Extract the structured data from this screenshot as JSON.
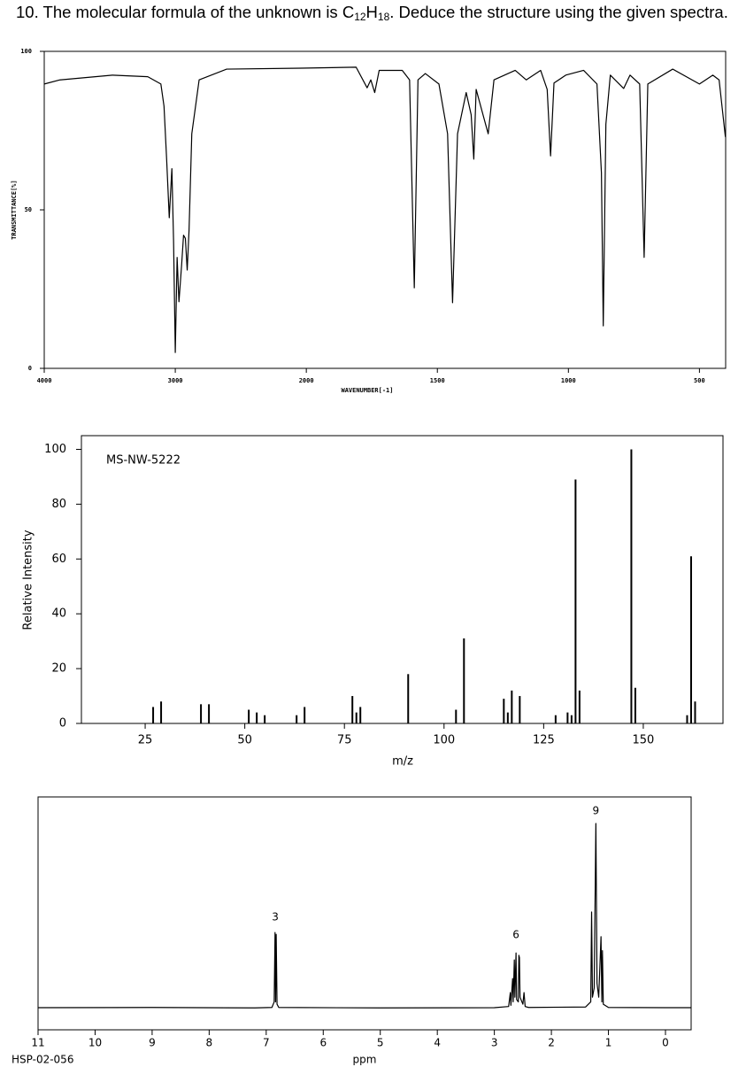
{
  "question": [
    "10.  The molecular formula of the unknown is C",
    "12",
    "H",
    "18",
    ".  Deduce the structure using the given spectra."
  ],
  "chart_data": [
    {
      "type": "line",
      "xlabel": "WAVENUMBER[-1]",
      "ylabel": "TRANSMITTANCE[%]",
      "color": "#000000",
      "xscale": "piecewise",
      "xlim": [
        4000,
        400
      ],
      "xticks": [
        4000,
        3000,
        2000,
        1500,
        1000,
        500
      ],
      "ylim": [
        0,
        100
      ],
      "yticks": [
        0,
        50,
        100
      ],
      "x": [
        4000,
        3880,
        3480,
        3210,
        3110,
        3086,
        3066,
        3046,
        3026,
        3013,
        3000,
        2986,
        2972,
        2951,
        2937,
        2923,
        2909,
        2895,
        2874,
        2818,
        2608,
        2042,
        1810,
        1768,
        1754,
        1739,
        1722,
        1634,
        1606,
        1588,
        1574,
        1546,
        1494,
        1461,
        1442,
        1423,
        1390,
        1371,
        1361,
        1352,
        1316,
        1306,
        1284,
        1203,
        1161,
        1106,
        1081,
        1068,
        1055,
        1010,
        942,
        891,
        874,
        867,
        857,
        840,
        789,
        765,
        728,
        711,
        697,
        602,
        500,
        449,
        425,
        401
      ],
      "values": [
        89.7,
        91,
        92.5,
        92,
        89.7,
        82.7,
        66,
        47.5,
        63,
        40,
        5,
        35,
        21,
        33,
        42,
        41,
        31,
        43.6,
        74,
        91,
        94.4,
        94.7,
        95,
        88.5,
        91,
        87,
        94,
        94,
        91,
        25.4,
        91,
        93,
        89.7,
        74,
        20.7,
        74,
        87,
        80,
        66,
        88,
        77,
        74,
        91,
        94,
        91,
        94,
        88,
        67,
        90,
        92.5,
        94,
        89.7,
        61.7,
        13.4,
        77,
        92.5,
        88.3,
        92.5,
        89.7,
        35,
        89.7,
        94.4,
        89.7,
        92.5,
        91,
        73
      ]
    },
    {
      "type": "bar",
      "title": "MS-NW-5222",
      "xlabel": "m/z",
      "ylabel": "Relative Intensity",
      "color": "#000000",
      "xlim": [
        9,
        170
      ],
      "xticks": [
        25,
        50,
        75,
        100,
        125,
        150
      ],
      "ylim": [
        0,
        105
      ],
      "yticks": [
        0,
        20,
        40,
        60,
        80,
        100
      ],
      "x": [
        27,
        29,
        39,
        41,
        51,
        53,
        55,
        63,
        65,
        77,
        78,
        79,
        91,
        103,
        105,
        115,
        116,
        117,
        119,
        128,
        131,
        132,
        133,
        134,
        147,
        148,
        161,
        162,
        163
      ],
      "values": [
        6,
        8,
        7,
        7,
        5,
        4,
        3,
        3,
        6,
        10,
        4,
        6,
        18,
        5,
        31,
        9,
        4,
        12,
        10,
        3,
        4,
        3,
        89,
        12,
        100,
        13,
        3,
        61,
        8
      ]
    },
    {
      "type": "line",
      "xlabel": "ppm",
      "code": "HSP-02-056",
      "color": "#000000",
      "xlim": [
        11,
        -0.45
      ],
      "xticks": [
        11,
        10,
        9,
        8,
        7,
        6,
        5,
        4,
        3,
        2,
        1,
        0
      ],
      "ylim": [
        0,
        100
      ],
      "annotations": [
        {
          "text": "3",
          "x": 6.84,
          "y": 48.3
        },
        {
          "text": "6",
          "x": 2.62,
          "y": 40.7
        },
        {
          "text": "9",
          "x": 1.22,
          "y": 93.9
        }
      ],
      "x": [
        11,
        9,
        7.2,
        6.9,
        6.86,
        6.845,
        6.835,
        6.825,
        6.81,
        6.78,
        5,
        3,
        2.75,
        2.72,
        2.71,
        2.68,
        2.67,
        2.65,
        2.64,
        2.62,
        2.61,
        2.58,
        2.57,
        2.56,
        2.55,
        2.5,
        2.48,
        2.46,
        2.4,
        1.4,
        1.31,
        1.295,
        1.28,
        1.25,
        1.22,
        1.2,
        1.17,
        1.13,
        1.115,
        1.105,
        1.09,
        1,
        0,
        -0.45
      ],
      "values": [
        9.5,
        9.6,
        9.4,
        9.6,
        12,
        41.8,
        12,
        41,
        11,
        9.6,
        9.4,
        9.5,
        10,
        16,
        10.5,
        22,
        12,
        30,
        14,
        33,
        13,
        12,
        32,
        31,
        14,
        11,
        16,
        10,
        9.6,
        9.8,
        12,
        50.6,
        14,
        18,
        88.6,
        20,
        14,
        40,
        12,
        34,
        11,
        9.6,
        9.5,
        9.5
      ]
    }
  ]
}
